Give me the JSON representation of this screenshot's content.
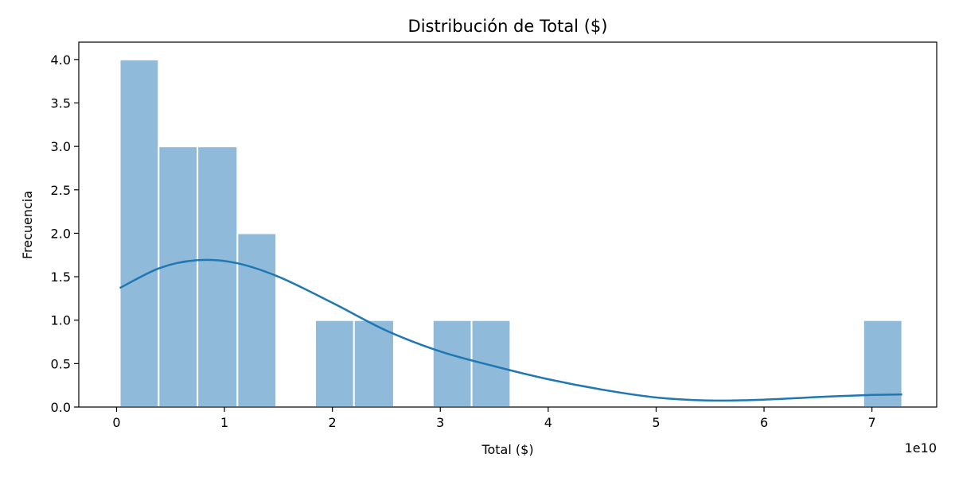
{
  "chart_data": {
    "type": "bar",
    "title": "Distribución de Total ($)",
    "xlabel": "Total ($)",
    "ylabel": "Frecuencia",
    "x_offset_text": "1e10",
    "x_scale": 10000000000,
    "xlim": [
      -0.35,
      7.6
    ],
    "ylim": [
      0,
      4.2
    ],
    "x_ticks": [
      0,
      1,
      2,
      3,
      4,
      5,
      6,
      7
    ],
    "x_tick_labels": [
      "0",
      "1",
      "2",
      "3",
      "4",
      "5",
      "6",
      "7"
    ],
    "y_ticks": [
      0,
      0.5,
      1,
      1.5,
      2,
      2.5,
      3,
      3.5,
      4
    ],
    "y_tick_labels": [
      "0.0",
      "0.5",
      "1.0",
      "1.5",
      "2.0",
      "2.5",
      "3.0",
      "3.5",
      "4.0"
    ],
    "grid": false,
    "legend": "none",
    "bins": [
      {
        "x0": 0.03,
        "x1": 0.39,
        "count": 4
      },
      {
        "x0": 0.39,
        "x1": 0.75,
        "count": 3
      },
      {
        "x0": 0.75,
        "x1": 1.12,
        "count": 3
      },
      {
        "x0": 1.12,
        "x1": 1.48,
        "count": 2
      },
      {
        "x0": 1.48,
        "x1": 1.84,
        "count": 0
      },
      {
        "x0": 1.84,
        "x1": 2.2,
        "count": 1
      },
      {
        "x0": 2.2,
        "x1": 2.57,
        "count": 1
      },
      {
        "x0": 2.57,
        "x1": 2.93,
        "count": 0
      },
      {
        "x0": 2.93,
        "x1": 3.29,
        "count": 1
      },
      {
        "x0": 3.29,
        "x1": 3.65,
        "count": 1
      },
      {
        "x0": 3.65,
        "x1": 4.02,
        "count": 0
      },
      {
        "x0": 4.02,
        "x1": 4.38,
        "count": 0
      },
      {
        "x0": 4.38,
        "x1": 4.74,
        "count": 0
      },
      {
        "x0": 4.74,
        "x1": 5.1,
        "count": 0
      },
      {
        "x0": 5.1,
        "x1": 5.47,
        "count": 0
      },
      {
        "x0": 5.47,
        "x1": 5.83,
        "count": 0
      },
      {
        "x0": 5.83,
        "x1": 6.19,
        "count": 0
      },
      {
        "x0": 6.19,
        "x1": 6.55,
        "count": 0
      },
      {
        "x0": 6.55,
        "x1": 6.92,
        "count": 0
      },
      {
        "x0": 6.92,
        "x1": 7.28,
        "count": 1
      }
    ],
    "kde": {
      "x": [
        0.03,
        0.4,
        0.75,
        1.1,
        1.5,
        2.0,
        2.5,
        3.0,
        3.5,
        4.0,
        4.5,
        5.0,
        5.5,
        6.0,
        6.5,
        7.0,
        7.28
      ],
      "y": [
        1.37,
        1.6,
        1.69,
        1.66,
        1.5,
        1.2,
        0.88,
        0.64,
        0.47,
        0.32,
        0.2,
        0.11,
        0.075,
        0.085,
        0.115,
        0.14,
        0.145
      ]
    },
    "colors": {
      "bar_fill": "#8fbad9",
      "bar_edge": "#ffffff",
      "kde_line": "#1f77b4"
    }
  }
}
